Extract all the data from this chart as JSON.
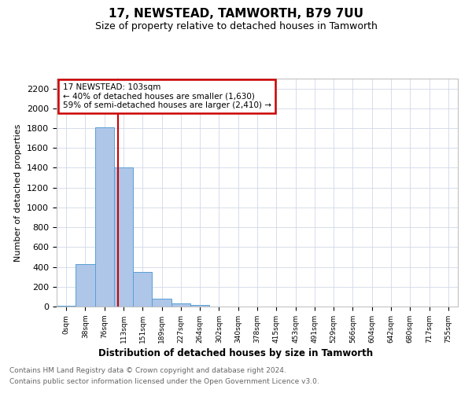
{
  "title": "17, NEWSTEAD, TAMWORTH, B79 7UU",
  "subtitle": "Size of property relative to detached houses in Tamworth",
  "xlabel": "Distribution of detached houses by size in Tamworth",
  "ylabel": "Number of detached properties",
  "bar_labels": [
    "0sqm",
    "38sqm",
    "76sqm",
    "113sqm",
    "151sqm",
    "189sqm",
    "227sqm",
    "264sqm",
    "302sqm",
    "340sqm",
    "378sqm",
    "415sqm",
    "453sqm",
    "491sqm",
    "529sqm",
    "566sqm",
    "604sqm",
    "642sqm",
    "680sqm",
    "717sqm",
    "755sqm"
  ],
  "bar_values": [
    10,
    425,
    1810,
    1400,
    350,
    80,
    32,
    18,
    0,
    0,
    0,
    0,
    0,
    0,
    0,
    0,
    0,
    0,
    0,
    0,
    0
  ],
  "bar_color": "#aec6e8",
  "bar_edgecolor": "#5a9fd4",
  "ylim": [
    0,
    2300
  ],
  "yticks": [
    0,
    200,
    400,
    600,
    800,
    1000,
    1200,
    1400,
    1600,
    1800,
    2000,
    2200
  ],
  "red_line_x": 2.7,
  "annotation_text": "17 NEWSTEAD: 103sqm\n← 40% of detached houses are smaller (1,630)\n59% of semi-detached houses are larger (2,410) →",
  "annotation_box_color": "#ffffff",
  "annotation_border_color": "#cc0000",
  "footer_line1": "Contains HM Land Registry data © Crown copyright and database right 2024.",
  "footer_line2": "Contains public sector information licensed under the Open Government Licence v3.0.",
  "background_color": "#ffffff",
  "grid_color": "#d0d8e8"
}
